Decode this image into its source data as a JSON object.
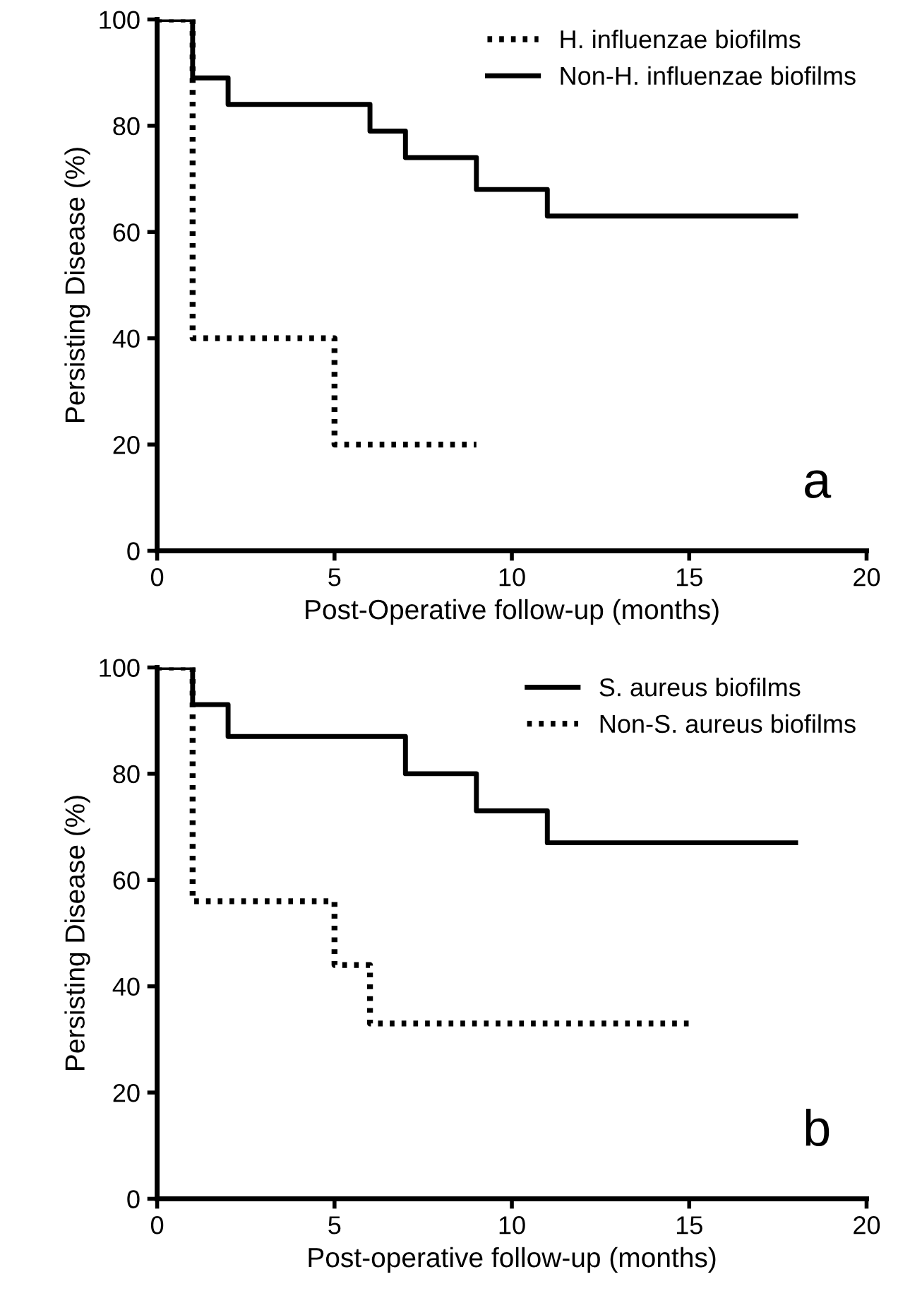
{
  "chart_data": [
    {
      "type": "step",
      "xlabel": "Post-Operative follow-up (months)",
      "ylabel": "Persisting Disease (%)",
      "xlim": [
        0,
        20
      ],
      "ylim": [
        0,
        100
      ],
      "xticks": [
        0,
        5,
        10,
        15,
        20
      ],
      "yticks": [
        0,
        20,
        40,
        60,
        80,
        100
      ],
      "grid": false,
      "legend": "top right",
      "annotations": [
        "a"
      ],
      "series": [
        {
          "name": "H. influenzae biofilms",
          "color": "#000000",
          "line_style": "dotted",
          "x": [
            0,
            1,
            5,
            9
          ],
          "values": [
            100,
            40,
            20,
            20
          ]
        },
        {
          "name": "Non-H. influenzae biofilms",
          "color": "#000000",
          "line_style": "solid",
          "x": [
            0,
            1,
            2,
            6,
            7,
            9,
            11,
            18
          ],
          "values": [
            100,
            89,
            84,
            79,
            74,
            68,
            63,
            63
          ]
        }
      ]
    },
    {
      "type": "step",
      "xlabel": "Post-operative follow-up (months)",
      "ylabel": "Persisting Disease (%)",
      "xlim": [
        0,
        20
      ],
      "ylim": [
        0,
        100
      ],
      "xticks": [
        0,
        5,
        10,
        15,
        20
      ],
      "yticks": [
        0,
        20,
        40,
        60,
        80,
        100
      ],
      "grid": false,
      "legend": "top right",
      "annotations": [
        "b"
      ],
      "series": [
        {
          "name": "S. aureus biofilms",
          "color": "#000000",
          "line_style": "solid",
          "x": [
            0,
            1,
            2,
            7,
            9,
            11,
            18
          ],
          "values": [
            100,
            93,
            87,
            80,
            73,
            67,
            67
          ]
        },
        {
          "name": "Non-S. aureus biofilms",
          "color": "#000000",
          "line_style": "dotted",
          "x": [
            0,
            1,
            5,
            6,
            15
          ],
          "values": [
            100,
            56,
            44,
            33,
            33
          ]
        }
      ]
    }
  ]
}
